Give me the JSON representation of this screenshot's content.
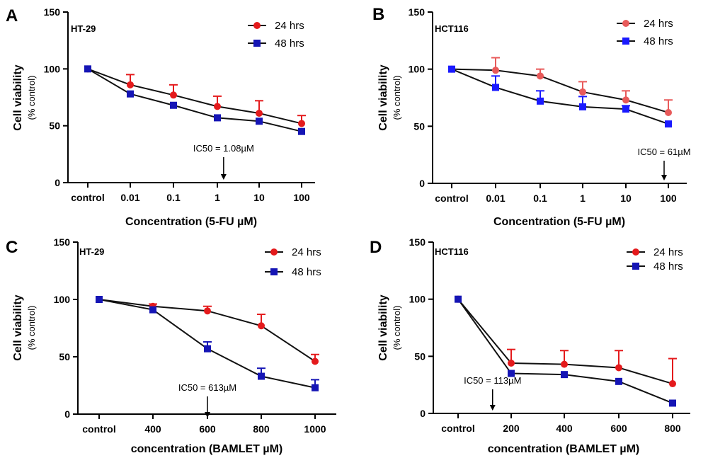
{
  "chart_data": [
    {
      "type": "line",
      "panel": "A",
      "cell_line": "HT-29",
      "categories": [
        "control",
        "0.01",
        "0.1",
        "1",
        "10",
        "100"
      ],
      "xlabel": "Concentration  (5-FU µM)",
      "ylabel": "Cell viability",
      "ylabel_sub": "(% control)",
      "ylim": [
        0,
        150
      ],
      "yticks": [
        "0",
        "50",
        "100",
        "150"
      ],
      "grid": false,
      "legend_position": "top-right",
      "series": [
        {
          "name": "24 hrs",
          "color": "#e41a1c",
          "marker": "circle",
          "values": [
            100,
            86,
            77,
            67,
            61,
            52
          ],
          "errors": [
            0,
            9,
            9,
            9,
            11,
            7
          ]
        },
        {
          "name": "48 hrs",
          "color": "#1515b5",
          "marker": "square",
          "values": [
            100,
            78,
            68,
            57,
            54,
            45
          ],
          "errors": [
            0,
            0,
            0,
            0,
            0,
            0
          ]
        }
      ],
      "annotation": {
        "text": "IC50 = 1.08µM",
        "x_index": 3.15
      }
    },
    {
      "type": "line",
      "panel": "B",
      "cell_line": "HCT116",
      "categories": [
        "control",
        "0.01",
        "0.1",
        "1",
        "10",
        "100"
      ],
      "xlabel": "Concentration  (5-FU µM)",
      "ylabel": "Cell viability",
      "ylabel_sub": "(% control)",
      "ylim": [
        0,
        150
      ],
      "yticks": [
        "0",
        "50",
        "100",
        "150"
      ],
      "grid": false,
      "legend_position": "top-right",
      "series": [
        {
          "name": "24 hrs",
          "color": "#e85a5a",
          "marker": "circle",
          "values": [
            100,
            99,
            94,
            80,
            73,
            62
          ],
          "errors": [
            0,
            11,
            6,
            9,
            8,
            11
          ]
        },
        {
          "name": "48 hrs",
          "color": "#1a1aff",
          "marker": "square",
          "values": [
            100,
            84,
            72,
            67,
            65,
            52
          ],
          "errors": [
            0,
            10,
            9,
            9,
            3,
            0
          ]
        }
      ],
      "annotation": {
        "text": "IC50 = 61µM",
        "x_index": 4.9
      }
    },
    {
      "type": "line",
      "panel": "C",
      "cell_line": "HT-29",
      "categories": [
        "control",
        "400",
        "600",
        "800",
        "1000"
      ],
      "xlabel": "concentration (BAMLET µM)",
      "ylabel": "Cell viability",
      "ylabel_sub": "(% control)",
      "ylim": [
        0,
        150
      ],
      "yticks": [
        "0",
        "50",
        "100",
        "150"
      ],
      "grid": false,
      "legend_position": "top-right",
      "series": [
        {
          "name": "24 hrs",
          "color": "#e41a1c",
          "marker": "circle",
          "values": [
            100,
            94,
            90,
            77,
            46
          ],
          "errors": [
            0,
            2,
            4,
            10,
            6
          ]
        },
        {
          "name": "48 hrs",
          "color": "#1515b5",
          "marker": "square",
          "values": [
            100,
            91,
            57,
            33,
            23
          ],
          "errors": [
            0,
            0,
            6,
            7,
            7
          ]
        }
      ],
      "annotation": {
        "text": "IC50 = 613µM",
        "x_index": 2.0
      }
    },
    {
      "type": "line",
      "panel": "D",
      "cell_line": "HCT116",
      "categories": [
        "control",
        "200",
        "400",
        "600",
        "800"
      ],
      "xlabel": "concentration (BAMLET µM)",
      "ylabel": "Cell viability",
      "ylabel_sub": "(% control)",
      "ylim": [
        0,
        150
      ],
      "yticks": [
        "0",
        "50",
        "100",
        "150"
      ],
      "grid": false,
      "legend_position": "top-right",
      "series": [
        {
          "name": "24 hrs",
          "color": "#e41a1c",
          "marker": "circle",
          "values": [
            100,
            44,
            43,
            40,
            26
          ],
          "errors": [
            0,
            12,
            12,
            15,
            22
          ]
        },
        {
          "name": "48 hrs",
          "color": "#1515b5",
          "marker": "square",
          "values": [
            100,
            35,
            34,
            28,
            9
          ],
          "errors": [
            0,
            0,
            0,
            0,
            0
          ]
        }
      ],
      "annotation": {
        "text": "IC50 = 113µM",
        "x_index": 0.65
      }
    }
  ]
}
